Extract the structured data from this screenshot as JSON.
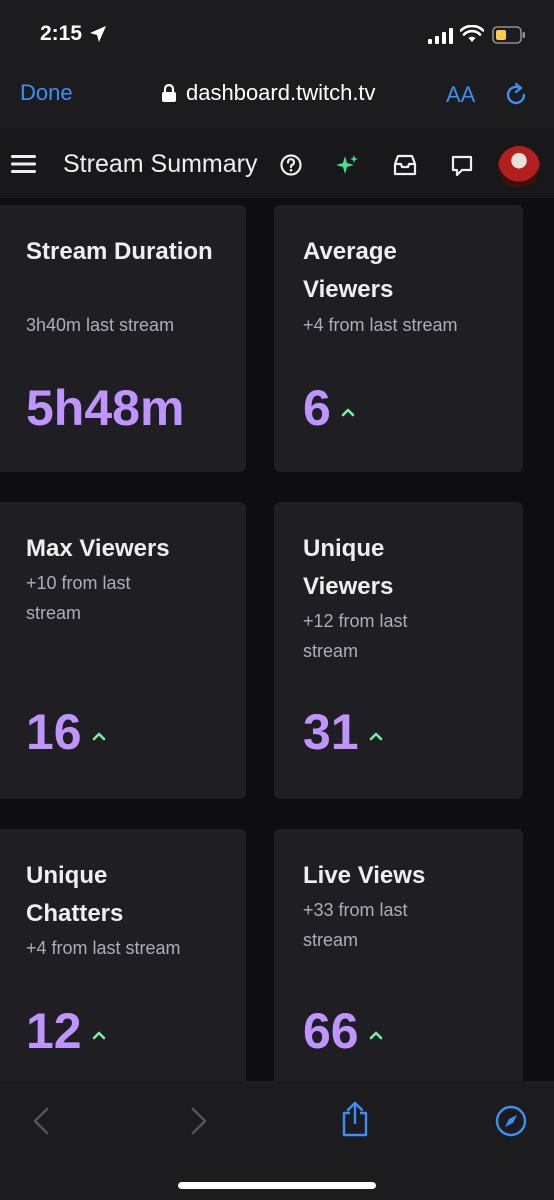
{
  "status_bar": {
    "time": "2:15"
  },
  "browser": {
    "done_label": "Done",
    "url": "dashboard.twitch.tv",
    "text_size_label": "AA"
  },
  "header": {
    "title": "Stream Summary"
  },
  "cards": [
    {
      "title": "Stream Duration",
      "subtitle": "3h40m last stream",
      "value": "5h48m",
      "trend": "none"
    },
    {
      "title": "Average Viewers",
      "subtitle": "+4 from last stream",
      "value": "6",
      "trend": "up"
    },
    {
      "title": "Max Viewers",
      "subtitle": "+10 from last stream",
      "value": "16",
      "trend": "up"
    },
    {
      "title": "Unique Viewers",
      "subtitle": "+12 from last stream",
      "value": "31",
      "trend": "up"
    },
    {
      "title": "Unique Chatters",
      "subtitle": "+4 from last stream",
      "value": "12",
      "trend": "up"
    },
    {
      "title": "Live Views",
      "subtitle": "+33 from last stream",
      "value": "66",
      "trend": "up"
    }
  ],
  "colors": {
    "accent": "#bf94ff",
    "trend_up": "#6ef3a7",
    "link": "#3d8ef7",
    "card_bg": "#1f1f23"
  },
  "icons": [
    "location-arrow-icon",
    "signal-icon",
    "wifi-icon",
    "battery-icon",
    "lock-icon",
    "reload-icon",
    "hamburger-icon",
    "help-icon",
    "sparkle-icon",
    "inbox-icon",
    "whisper-icon",
    "arrow-up-icon",
    "back-icon",
    "forward-icon",
    "share-icon",
    "compass-icon"
  ]
}
